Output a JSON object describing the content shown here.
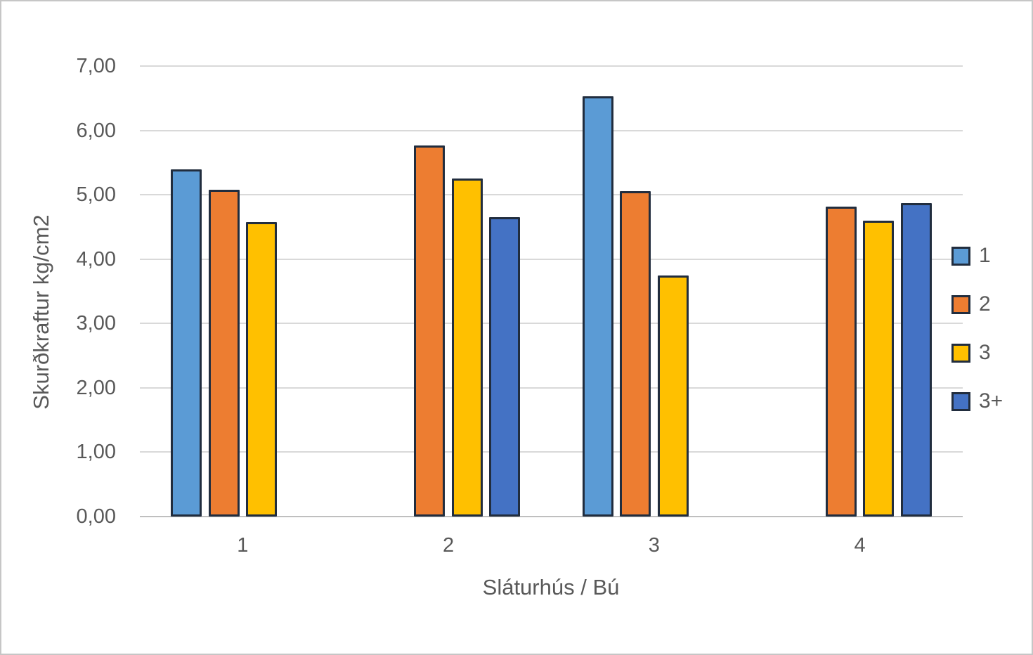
{
  "chart_data": {
    "type": "bar",
    "title": "",
    "xlabel": "Sláturhús / Bú",
    "ylabel": "Skurðkraftur kg/cm2",
    "categories": [
      "1",
      "2",
      "3",
      "4"
    ],
    "series": [
      {
        "name": "1",
        "color": "#5B9BD5",
        "values": [
          5.4,
          null,
          6.53,
          null
        ]
      },
      {
        "name": "2",
        "color": "#ED7D31",
        "values": [
          5.08,
          5.77,
          5.06,
          4.82
        ]
      },
      {
        "name": "3",
        "color": "#FFC000",
        "values": [
          4.58,
          5.25,
          3.75,
          4.6
        ]
      },
      {
        "name": "3+",
        "color": "#4472C4",
        "values": [
          null,
          4.65,
          null,
          4.87
        ]
      }
    ],
    "ylim": [
      0,
      7
    ],
    "ytick_step": 1,
    "ytick_labels": [
      "0,00",
      "1,00",
      "2,00",
      "3,00",
      "4,00",
      "5,00",
      "6,00",
      "7,00"
    ],
    "grid": true,
    "legend_position": "right",
    "style": {
      "bar_border_color": "#212d3e",
      "gridline_color": "#d9d9d9",
      "axis_line_color": "#bfbfbf",
      "text_color": "#595959",
      "frame_border_color": "#c6c6c6",
      "background": "#ffffff"
    }
  }
}
